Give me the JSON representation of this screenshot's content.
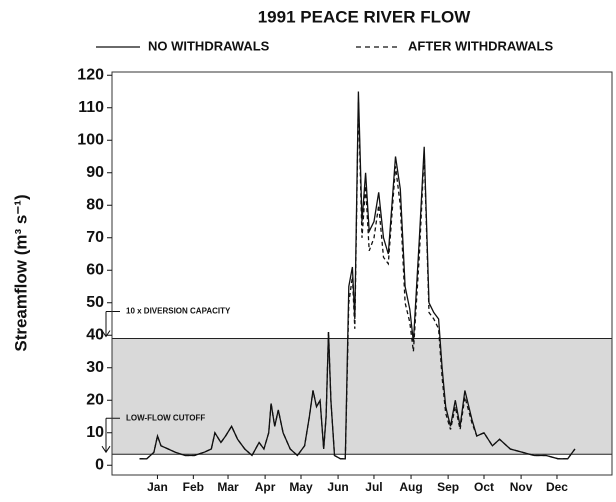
{
  "chart_data": {
    "type": "line",
    "title": "1991 PEACE RIVER FLOW",
    "y_label": "Streamflow (m³ s⁻¹)",
    "x": [
      0,
      6,
      12,
      15,
      18,
      24,
      30,
      38,
      46,
      54,
      60,
      63,
      68,
      72,
      77,
      82,
      88,
      94,
      100,
      104,
      108,
      110,
      113,
      116,
      120,
      126,
      132,
      138,
      142,
      145,
      148,
      151,
      154,
      156,
      158,
      160,
      163,
      168,
      172,
      175,
      178,
      180,
      183,
      186,
      189,
      192,
      196,
      200,
      204,
      208,
      214,
      218,
      222,
      226,
      229,
      234,
      238,
      242,
      246,
      250,
      253,
      256,
      260,
      264,
      268,
      272,
      278,
      282,
      288,
      295,
      301,
      310,
      320,
      330,
      340,
      350,
      358,
      364
    ],
    "series": [
      {
        "name": "NO WITHDRAWALS",
        "color": "#111111",
        "dash": false,
        "values": [
          2,
          2,
          4,
          9,
          6,
          5,
          4,
          3,
          3,
          4,
          5,
          10,
          7,
          9,
          12,
          8,
          5,
          3,
          7,
          5,
          10,
          19,
          12,
          17,
          10,
          5,
          3,
          6,
          15,
          23,
          18,
          20,
          5,
          15,
          41,
          20,
          3,
          2,
          2,
          55,
          61,
          45,
          115,
          75,
          90,
          72,
          75,
          84,
          70,
          65,
          95,
          85,
          55,
          48,
          38,
          70,
          98,
          50,
          47,
          45,
          30,
          18,
          12,
          20,
          12,
          23,
          14,
          9,
          10,
          6,
          8,
          5,
          4,
          3,
          3,
          2,
          2,
          5
        ]
      },
      {
        "name": "AFTER WITHDRAWALS",
        "color": "#111111",
        "dash": true,
        "values": [
          2,
          2,
          4,
          9,
          6,
          5,
          4,
          3,
          3,
          4,
          5,
          10,
          7,
          9,
          12,
          8,
          5,
          3,
          7,
          5,
          10,
          19,
          12,
          17,
          10,
          5,
          3,
          6,
          15,
          23,
          18,
          20,
          5,
          15,
          41,
          20,
          3,
          2,
          2,
          50,
          58,
          42,
          112,
          70,
          86,
          66,
          70,
          80,
          64,
          62,
          92,
          80,
          50,
          44,
          35,
          65,
          96,
          47,
          45,
          42,
          27,
          16,
          11,
          18,
          11,
          21,
          13,
          9,
          10,
          6,
          8,
          5,
          4,
          3,
          3,
          2,
          2,
          5
        ]
      }
    ],
    "xlim": [
      -23,
      395
    ],
    "xticks": [
      {
        "value": 15,
        "label": "Jan"
      },
      {
        "value": 45,
        "label": "Feb"
      },
      {
        "value": 74,
        "label": "Mar"
      },
      {
        "value": 105,
        "label": "Apr"
      },
      {
        "value": 135,
        "label": "May"
      },
      {
        "value": 166,
        "label": "Jun"
      },
      {
        "value": 196,
        "label": "Jul"
      },
      {
        "value": 227,
        "label": "Aug"
      },
      {
        "value": 258,
        "label": "Sep"
      },
      {
        "value": 288,
        "label": "Oct"
      },
      {
        "value": 319,
        "label": "Nov"
      },
      {
        "value": 349,
        "label": "Dec"
      }
    ],
    "ylim": [
      -3,
      121
    ],
    "yticks": [
      0,
      10,
      20,
      30,
      40,
      50,
      60,
      70,
      80,
      90,
      100,
      110,
      120
    ],
    "reference_band": {
      "low": 3.4,
      "high": 39,
      "color": "#d9d9d9"
    },
    "annotations": [
      {
        "text": "10 x DIVERSION CAPACITY",
        "value": 39
      },
      {
        "text": "LOW-FLOW CUTOFF",
        "value": 3.4
      }
    ]
  }
}
